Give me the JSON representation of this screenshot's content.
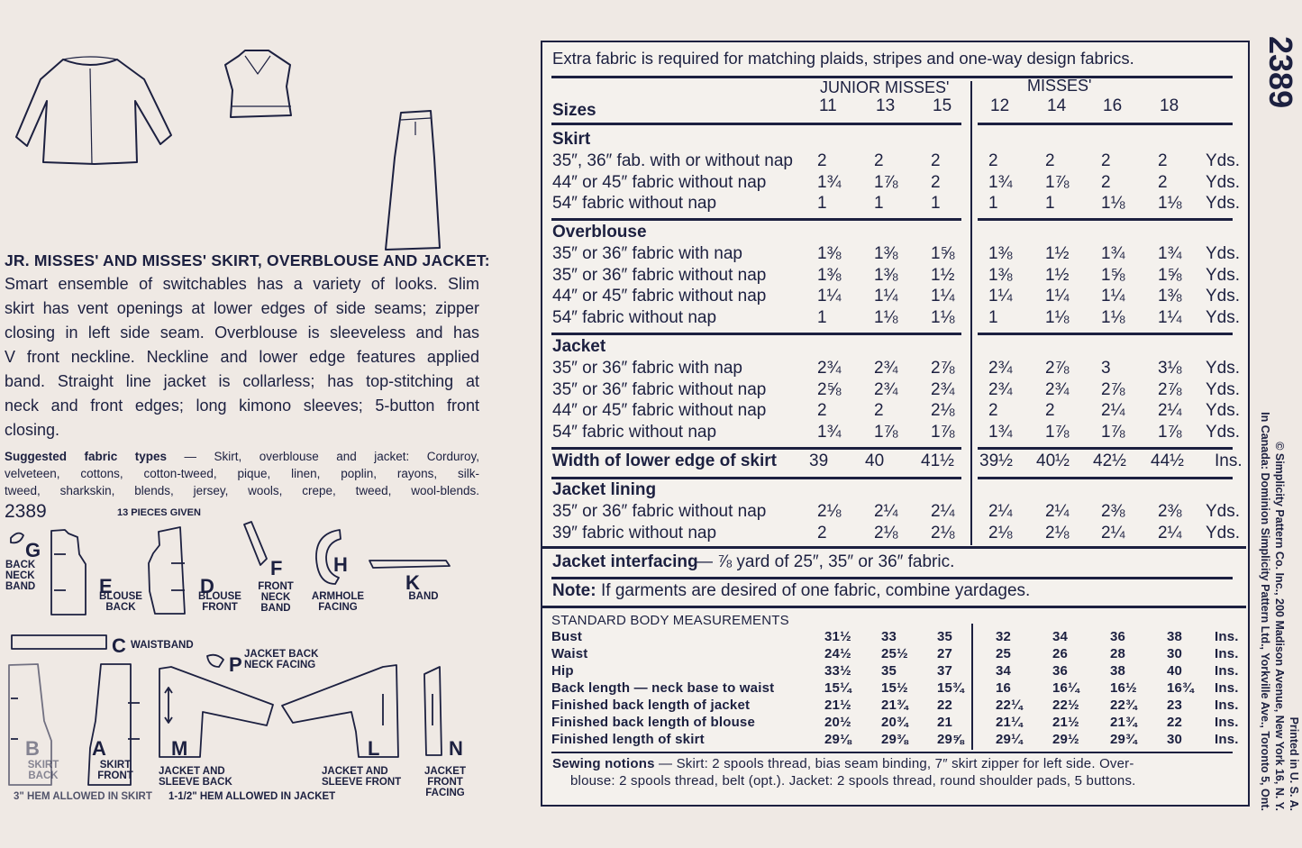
{
  "left": {
    "title": "JR. MISSES' AND MISSES' SKIRT, OVERBLOUSE AND JACKET:",
    "description_lines": [
      "Smart ensemble of switchables has a variety of looks. Slim",
      "skirt has vent openings at lower edges of side seams; zipper",
      "closing in left side seam. Overblouse is sleeveless and has",
      "V front neckline. Neckline and lower edge features applied",
      "band. Straight line jacket is collarless; has top-stitching at",
      "neck and front edges; long kimono sleeves; 5-button front",
      "closing."
    ],
    "fabric_label": "Suggested fabric types",
    "fabric_lines": [
      " — Skirt, overblouse and jacket: Corduroy,",
      "velveteen, cottons, cotton-tweed, pique, linen, poplin, rayons, silk-",
      "tweed, sharkskin, blends, jersey, wools, crepe, tweed, wool-blends."
    ],
    "pattern_number": "2389",
    "pieces_given": "13 PIECES GIVEN",
    "pieces": {
      "G": {
        "letter": "G",
        "name": "BACK NECK BAND"
      },
      "E": {
        "letter": "E",
        "name": "BLOUSE BACK"
      },
      "D": {
        "letter": "D",
        "name": "BLOUSE FRONT"
      },
      "F": {
        "letter": "F",
        "name": "FRONT NECK BAND"
      },
      "H": {
        "letter": "H",
        "name": "ARMHOLE FACING"
      },
      "K": {
        "letter": "K",
        "name": "BAND"
      },
      "C": {
        "letter": "C",
        "name": "WAISTBAND"
      },
      "P": {
        "letter": "P",
        "name": "JACKET BACK NECK FACING"
      },
      "B": {
        "letter": "B",
        "name": "SKIRT BACK"
      },
      "A": {
        "letter": "A",
        "name": "SKIRT FRONT"
      },
      "M": {
        "letter": "M",
        "name": "JACKET AND SLEEVE BACK"
      },
      "L": {
        "letter": "L",
        "name": "JACKET AND SLEEVE FRONT"
      },
      "N": {
        "letter": "N",
        "name": "JACKET FRONT FACING"
      }
    },
    "hem_skirt": "3\" HEM ALLOWED IN SKIRT",
    "hem_jacket": "1-1/2\" HEM ALLOWED IN JACKET"
  },
  "side": {
    "pattern_number": "2389",
    "printed": "Printed in U. S. A.",
    "copyright": "© Simplicity Pattern Co. Inc., 200 Madison Avenue, New York 16, N. Y.",
    "canada": "In Canada: Dominion Simplicity Pattern Ltd., Yorkville Ave., Toronto 5, Ont."
  },
  "table": {
    "note_top": "Extra fabric is required for matching plaids, stripes and one-way design fabrics.",
    "junior_label": "JUNIOR MISSES'",
    "misses_label": "MISSES'",
    "sizes_label": "Sizes",
    "sizes": [
      "11",
      "13",
      "15",
      "12",
      "14",
      "16",
      "18"
    ],
    "sections": [
      {
        "title": "Skirt",
        "rows": [
          {
            "label": "35″, 36″ fab. with or without nap",
            "values": [
              "2",
              "2",
              "2",
              "2",
              "2",
              "2",
              "2"
            ],
            "unit": "Yds."
          },
          {
            "label": "44″ or 45″ fabric without nap",
            "values": [
              "1¾",
              "1⅞",
              "2",
              "1¾",
              "1⅞",
              "2",
              "2"
            ],
            "unit": "Yds."
          },
          {
            "label": "54″ fabric without nap",
            "values": [
              "1",
              "1",
              "1",
              "1",
              "1",
              "1⅛",
              "1⅛"
            ],
            "unit": "Yds."
          }
        ]
      },
      {
        "title": "Overblouse",
        "rows": [
          {
            "label": "35″ or 36″ fabric with nap",
            "values": [
              "1⅜",
              "1⅜",
              "1⅝",
              "1⅜",
              "1½",
              "1¾",
              "1¾"
            ],
            "unit": "Yds."
          },
          {
            "label": "35″ or 36″ fabric without nap",
            "values": [
              "1⅜",
              "1⅜",
              "1½",
              "1⅜",
              "1½",
              "1⅝",
              "1⅝"
            ],
            "unit": "Yds."
          },
          {
            "label": "44″ or 45″ fabric without nap",
            "values": [
              "1¼",
              "1¼",
              "1¼",
              "1¼",
              "1¼",
              "1¼",
              "1⅜"
            ],
            "unit": "Yds."
          },
          {
            "label": "54″ fabric without nap",
            "values": [
              "1",
              "1⅛",
              "1⅛",
              "1",
              "1⅛",
              "1⅛",
              "1¼"
            ],
            "unit": "Yds."
          }
        ]
      },
      {
        "title": "Jacket",
        "rows": [
          {
            "label": "35″ or 36″ fabric with nap",
            "values": [
              "2¾",
              "2¾",
              "2⅞",
              "2¾",
              "2⅞",
              "3",
              "3⅛"
            ],
            "unit": "Yds."
          },
          {
            "label": "35″ or 36″ fabric without nap",
            "values": [
              "2⅝",
              "2¾",
              "2¾",
              "2¾",
              "2¾",
              "2⅞",
              "2⅞"
            ],
            "unit": "Yds."
          },
          {
            "label": "44″ or 45″ fabric without nap",
            "values": [
              "2",
              "2",
              "2⅛",
              "2",
              "2",
              "2¼",
              "2¼"
            ],
            "unit": "Yds."
          },
          {
            "label": "54″ fabric without nap",
            "values": [
              "1¾",
              "1⅞",
              "1⅞",
              "1¾",
              "1⅞",
              "1⅞",
              "1⅞"
            ],
            "unit": "Yds."
          }
        ]
      },
      {
        "title": "Width of lower edge of skirt",
        "rows": [],
        "values": [
          "39",
          "40",
          "41½",
          "39½",
          "40½",
          "42½",
          "44½"
        ],
        "unit": "Ins."
      },
      {
        "title": "Jacket lining",
        "rows": [
          {
            "label": "35″ or 36″ fabric without nap",
            "values": [
              "2⅛",
              "2¼",
              "2¼",
              "2¼",
              "2¼",
              "2⅜",
              "2⅜"
            ],
            "unit": "Yds."
          },
          {
            "label": "39″ fabric without nap",
            "values": [
              "2",
              "2⅛",
              "2⅛",
              "2⅛",
              "2⅛",
              "2¼",
              "2¼"
            ],
            "unit": "Yds."
          }
        ]
      }
    ],
    "interfacing_label": "Jacket interfacing",
    "interfacing_text": "— ⅞ yard of 25″, 35″ or 36″ fabric.",
    "note_label": "Note:",
    "note_text": "If garments are desired of one fabric, combine yardages.",
    "measurements": {
      "title": "STANDARD BODY MEASUREMENTS",
      "rows": [
        {
          "label": "Bust",
          "values": [
            "31½",
            "33",
            "35",
            "32",
            "34",
            "36",
            "38"
          ],
          "unit": "Ins."
        },
        {
          "label": "Waist",
          "values": [
            "24½",
            "25½",
            "27",
            "25",
            "26",
            "28",
            "30"
          ],
          "unit": "Ins."
        },
        {
          "label": "Hip",
          "values": [
            "33½",
            "35",
            "37",
            "34",
            "36",
            "38",
            "40"
          ],
          "unit": "Ins."
        },
        {
          "label": "Back length — neck base to waist",
          "values": [
            "15¼",
            "15½",
            "15¾",
            "16",
            "16¼",
            "16½",
            "16¾"
          ],
          "unit": "Ins."
        },
        {
          "label": "Finished back length of jacket",
          "values": [
            "21½",
            "21¾",
            "22",
            "22¼",
            "22½",
            "22¾",
            "23"
          ],
          "unit": "Ins."
        },
        {
          "label": "Finished back length of blouse",
          "values": [
            "20½",
            "20¾",
            "21",
            "21¼",
            "21½",
            "21¾",
            "22"
          ],
          "unit": "Ins."
        },
        {
          "label": "Finished length of skirt",
          "values": [
            "29⅛",
            "29⅜",
            "29⅝",
            "29¼",
            "29½",
            "29¾",
            "30"
          ],
          "unit": "Ins."
        }
      ]
    },
    "notions_label": "Sewing notions",
    "notions_lines": [
      " — Skirt: 2 spools thread, bias seam binding, 7″ skirt zipper for left side. Over-",
      "blouse: 2 spools thread, belt (opt.). Jacket: 2 spools thread, round shoulder pads, 5 buttons."
    ]
  }
}
